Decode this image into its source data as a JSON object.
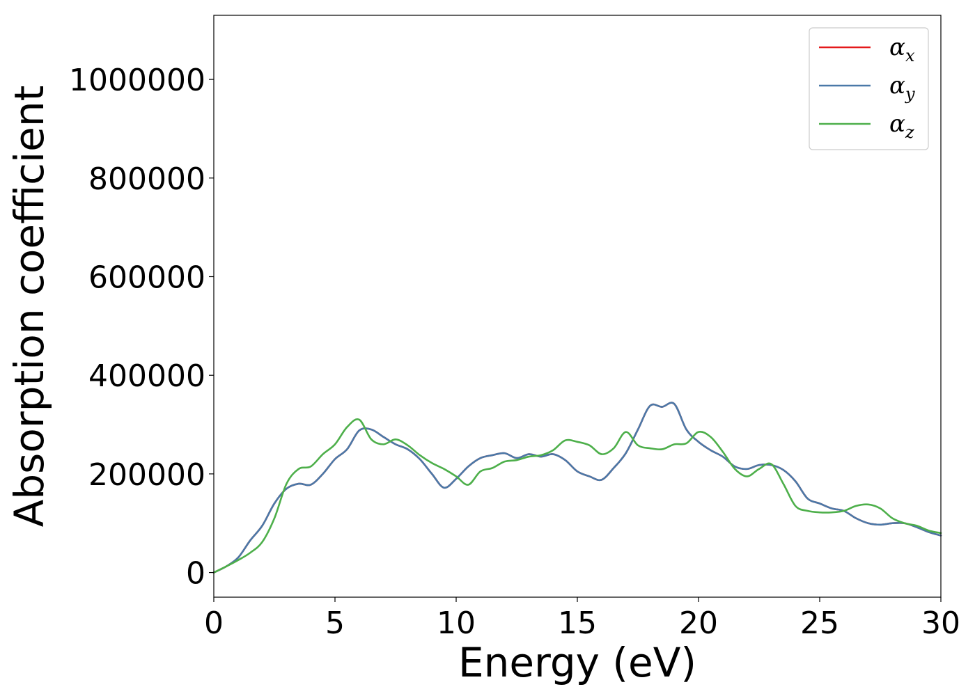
{
  "chart_data": {
    "type": "line",
    "xlabel": "Energy (eV)",
    "ylabel": "Absorption coefficient",
    "xlim": [
      0,
      30
    ],
    "ylim": [
      -50000,
      1130000
    ],
    "xticks": [
      0,
      5,
      10,
      15,
      20,
      25,
      30
    ],
    "xtick_labels": [
      "0",
      "5",
      "10",
      "15",
      "20",
      "25",
      "30"
    ],
    "yticks": [
      0,
      200000,
      400000,
      600000,
      800000,
      1000000
    ],
    "ytick_labels": [
      "0",
      "200000",
      "400000",
      "600000",
      "800000",
      "1000000"
    ],
    "grid": false,
    "legend_position": "top-right",
    "series": [
      {
        "name": "α",
        "subscript": "x",
        "color": "#e41a1c",
        "x": [
          0,
          0.5,
          1,
          1.5,
          2,
          2.5,
          3,
          3.5,
          4,
          4.5,
          5,
          5.5,
          6,
          6.5,
          7,
          7.5,
          8,
          8.5,
          9,
          9.5,
          10,
          10.5,
          11,
          11.5,
          12,
          12.5,
          13,
          13.5,
          14,
          14.5,
          15,
          15.5,
          16,
          16.5,
          17,
          17.5,
          18,
          18.5,
          19,
          19.5,
          20,
          20.5,
          21,
          21.5,
          22,
          22.5,
          23,
          23.5,
          24,
          24.5,
          25,
          25.5,
          26,
          26.5,
          27,
          27.5,
          28,
          28.5,
          29,
          29.5,
          30
        ],
        "y": [
          0,
          12000,
          30000,
          65000,
          95000,
          140000,
          170000,
          180000,
          178000,
          200000,
          230000,
          250000,
          288000,
          290000,
          275000,
          260000,
          250000,
          230000,
          200000,
          172000,
          190000,
          215000,
          232000,
          238000,
          242000,
          232000,
          240000,
          235000,
          240000,
          228000,
          205000,
          195000,
          188000,
          212000,
          242000,
          290000,
          338000,
          336000,
          342000,
          290000,
          265000,
          248000,
          235000,
          215000,
          210000,
          218000,
          218000,
          208000,
          185000,
          150000,
          140000,
          130000,
          125000,
          110000,
          100000,
          97000,
          100000,
          100000,
          92000,
          82000,
          75000
        ]
      },
      {
        "name": "α",
        "subscript": "y",
        "color": "#4a79a8",
        "x": [
          0,
          0.5,
          1,
          1.5,
          2,
          2.5,
          3,
          3.5,
          4,
          4.5,
          5,
          5.5,
          6,
          6.5,
          7,
          7.5,
          8,
          8.5,
          9,
          9.5,
          10,
          10.5,
          11,
          11.5,
          12,
          12.5,
          13,
          13.5,
          14,
          14.5,
          15,
          15.5,
          16,
          16.5,
          17,
          17.5,
          18,
          18.5,
          19,
          19.5,
          20,
          20.5,
          21,
          21.5,
          22,
          22.5,
          23,
          23.5,
          24,
          24.5,
          25,
          25.5,
          26,
          26.5,
          27,
          27.5,
          28,
          28.5,
          29,
          29.5,
          30
        ],
        "y": [
          0,
          12000,
          30000,
          65000,
          95000,
          140000,
          170000,
          180000,
          178000,
          200000,
          230000,
          250000,
          288000,
          290000,
          275000,
          260000,
          250000,
          230000,
          200000,
          172000,
          190000,
          215000,
          232000,
          238000,
          242000,
          232000,
          240000,
          235000,
          240000,
          228000,
          205000,
          195000,
          188000,
          212000,
          242000,
          290000,
          338000,
          336000,
          342000,
          290000,
          265000,
          248000,
          235000,
          215000,
          210000,
          218000,
          218000,
          208000,
          185000,
          150000,
          140000,
          130000,
          125000,
          110000,
          100000,
          97000,
          100000,
          100000,
          92000,
          82000,
          75000
        ]
      },
      {
        "name": "α",
        "subscript": "z",
        "color": "#4daf4a",
        "x": [
          0,
          0.5,
          1,
          1.5,
          2,
          2.5,
          3,
          3.5,
          4,
          4.5,
          5,
          5.5,
          6,
          6.5,
          7,
          7.5,
          8,
          8.5,
          9,
          9.5,
          10,
          10.5,
          11,
          11.5,
          12,
          12.5,
          13,
          13.5,
          14,
          14.5,
          15,
          15.5,
          16,
          16.5,
          17,
          17.5,
          18,
          18.5,
          19,
          19.5,
          20,
          20.5,
          21,
          21.5,
          22,
          22.5,
          23,
          23.5,
          24,
          24.5,
          25,
          25.5,
          26,
          26.5,
          27,
          27.5,
          28,
          28.5,
          29,
          29.5,
          30
        ],
        "y": [
          0,
          12000,
          25000,
          40000,
          62000,
          110000,
          180000,
          210000,
          215000,
          240000,
          260000,
          295000,
          310000,
          270000,
          260000,
          270000,
          258000,
          238000,
          222000,
          210000,
          195000,
          178000,
          205000,
          212000,
          225000,
          228000,
          235000,
          238000,
          248000,
          268000,
          265000,
          258000,
          240000,
          252000,
          285000,
          258000,
          252000,
          250000,
          260000,
          262000,
          285000,
          275000,
          245000,
          210000,
          195000,
          210000,
          220000,
          180000,
          135000,
          125000,
          122000,
          122000,
          125000,
          135000,
          138000,
          130000,
          110000,
          100000,
          95000,
          85000,
          80000
        ]
      }
    ]
  }
}
